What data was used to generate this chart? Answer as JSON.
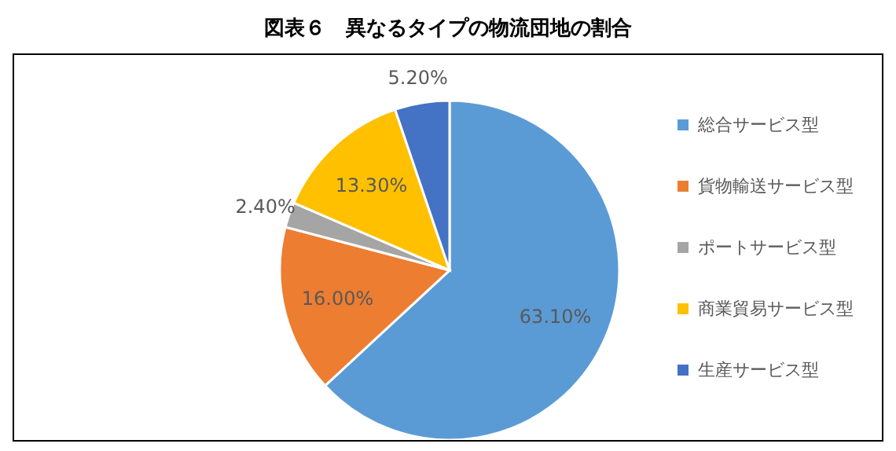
{
  "chart_data": {
    "type": "pie",
    "title": "図表６　異なるタイプの物流団地の割合",
    "categories": [
      "総合サービス型",
      "貨物輸送サービス型",
      "ポートサービス型",
      "商業貿易サービス型",
      "生産サービス型"
    ],
    "values": [
      63.1,
      16.0,
      2.4,
      13.3,
      5.2
    ],
    "value_labels": [
      "63.10%",
      "16.00%",
      "2.40%",
      "13.30%",
      "5.20%"
    ],
    "colors": [
      "#5b9bd5",
      "#ed7d31",
      "#a5a5a5",
      "#ffc000",
      "#4472c4"
    ],
    "legend": "right"
  }
}
